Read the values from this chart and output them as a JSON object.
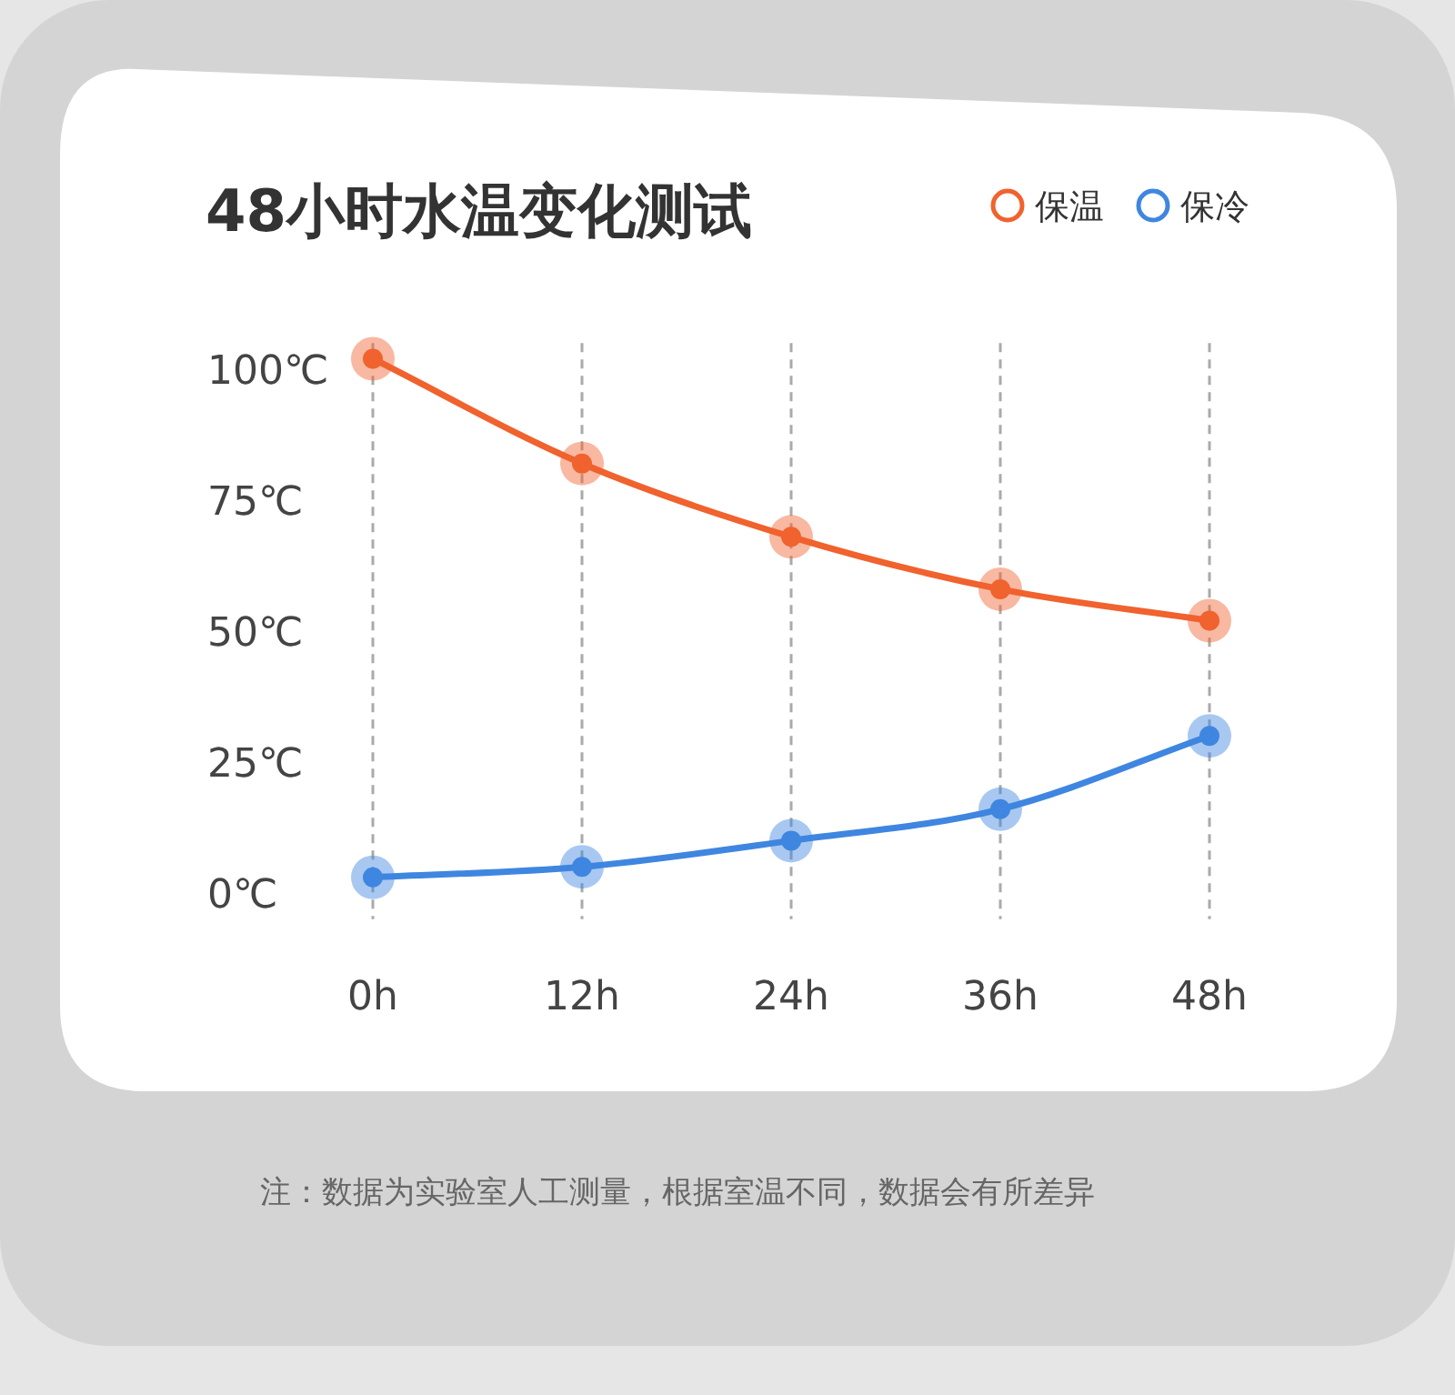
{
  "chart_data": {
    "type": "line",
    "title": "48小时水温变化测试",
    "x": [
      0,
      12,
      24,
      36,
      48
    ],
    "xlim": [
      0,
      48
    ],
    "xticks": [
      {
        "value": 0,
        "label": "0h"
      },
      {
        "value": 12,
        "label": "12h"
      },
      {
        "value": 24,
        "label": "24h"
      },
      {
        "value": 36,
        "label": "36h"
      },
      {
        "value": 48,
        "label": "48h"
      }
    ],
    "ylim": [
      -5,
      105
    ],
    "yticks": [
      {
        "value": 0,
        "label": "0℃"
      },
      {
        "value": 25,
        "label": "25℃"
      },
      {
        "value": 50,
        "label": "50℃"
      },
      {
        "value": 75,
        "label": "75℃"
      },
      {
        "value": 100,
        "label": "100℃"
      }
    ],
    "series": [
      {
        "name": "保温",
        "color": "#f0622e",
        "values": [
          102,
          82,
          68,
          58,
          52
        ]
      },
      {
        "name": "保冷",
        "color": "#3f86e0",
        "values": [
          3,
          5,
          10,
          16,
          30
        ]
      }
    ],
    "grid": "x",
    "legend": "top right",
    "marker": "circle",
    "line_style": "solid",
    "annotations": [
      "注：数据为实验室人工测量，根据室温不同，数据会有所差异"
    ]
  }
}
